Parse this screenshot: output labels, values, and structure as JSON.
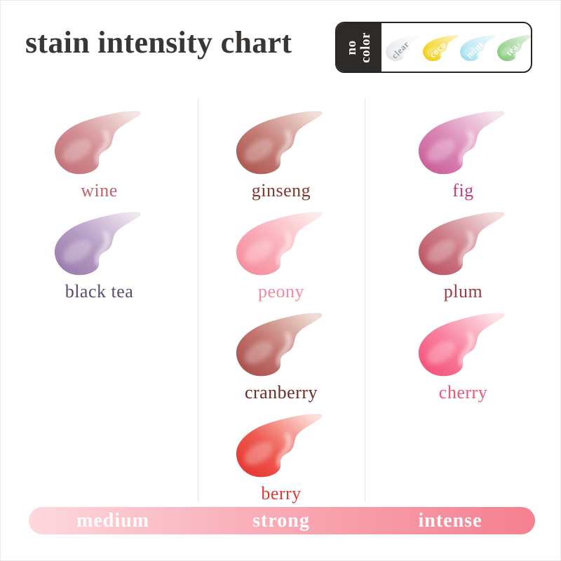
{
  "page": {
    "title": "stain intensity chart"
  },
  "legend": {
    "no_color_line1": "no",
    "no_color_line2": "color",
    "swatches": [
      {
        "label": "clear",
        "text_color": "#9da2a8",
        "dark": "#dfe3e6",
        "mid": "#eef0f2",
        "light": "#fbfcfd"
      },
      {
        "label": "coco",
        "text_color": "#ffffff",
        "dark": "#f1ce10",
        "mid": "#f6db48",
        "light": "#fbf2bb"
      },
      {
        "label": "mint",
        "text_color": "#ffffff",
        "dark": "#9fdcee",
        "mid": "#c3eaf4",
        "light": "#ebf8fb"
      },
      {
        "label": "tea",
        "text_color": "#ffffff",
        "dark": "#85c77b",
        "mid": "#a9d9a1",
        "light": "#dff1db"
      }
    ]
  },
  "grid": {
    "columns": [
      {
        "intensity": "medium",
        "shades": [
          {
            "label": "wine",
            "label_color": "#c5606c",
            "dark": "#c27379",
            "mid": "#d38d93",
            "light": "#f4e4e1"
          },
          {
            "label": "black tea",
            "label_color": "#5c4a6e",
            "dark": "#9b7cab",
            "mid": "#b49ac2",
            "light": "#efe4f1"
          }
        ]
      },
      {
        "intensity": "strong",
        "shades": [
          {
            "label": "ginseng",
            "label_color": "#82362c",
            "dark": "#ad5650",
            "mid": "#c47d76",
            "light": "#f1ded7"
          },
          {
            "label": "peony",
            "label_color": "#f48aa0",
            "dark": "#f68d9d",
            "mid": "#f9abb6",
            "light": "#fdeaea"
          },
          {
            "label": "cranberry",
            "label_color": "#6e2a24",
            "dark": "#aa4f4c",
            "mid": "#c2766f",
            "light": "#f0dcd4"
          },
          {
            "label": "berry",
            "label_color": "#e43732",
            "dark": "#e63531",
            "mid": "#ee5d53",
            "light": "#fcdfd8"
          }
        ]
      },
      {
        "intensity": "intense",
        "shades": [
          {
            "label": "fig",
            "label_color": "#bb3d80",
            "dark": "#c95e97",
            "mid": "#da88b6",
            "light": "#f7e6ef"
          },
          {
            "label": "plum",
            "label_color": "#9d3a49",
            "dark": "#bb5362",
            "mid": "#cc7a85",
            "light": "#f4e0e1"
          },
          {
            "label": "cherry",
            "label_color": "#f2547a",
            "dark": "#f45179",
            "mid": "#f87e9c",
            "light": "#fde4e8"
          }
        ]
      }
    ]
  },
  "intensity_bar": {
    "labels": [
      "medium",
      "strong",
      "intense"
    ],
    "gradient": [
      "#fdd8dd",
      "#f9a9b4",
      "#f5808f"
    ]
  },
  "chart_data": {
    "type": "table",
    "title": "stain intensity chart",
    "columns": [
      "medium",
      "strong",
      "intense"
    ],
    "rows": [
      [
        "wine",
        "ginseng",
        "fig"
      ],
      [
        "black tea",
        "peony",
        "plum"
      ],
      [
        "",
        "cranberry",
        "cherry"
      ],
      [
        "",
        "berry",
        ""
      ]
    ],
    "no_color_group": [
      "clear",
      "coco",
      "mint",
      "tea"
    ],
    "legend_position": "top-right"
  }
}
